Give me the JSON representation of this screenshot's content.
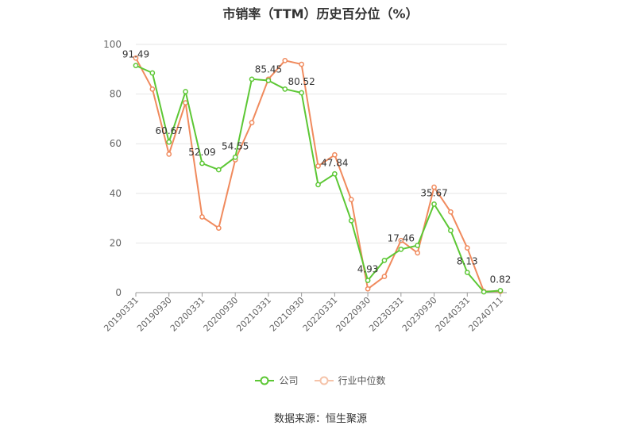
{
  "chart_data": {
    "type": "line",
    "title": "市销率（TTM）历史百分位（%）",
    "x": [
      "20190331",
      "",
      "20190930",
      "",
      "20200331",
      "",
      "20200930",
      "",
      "20210331",
      "",
      "20210930",
      "",
      "20220331",
      "",
      "20220930",
      "",
      "20230331",
      "",
      "20230930",
      "",
      "20240331",
      "",
      "20240711"
    ],
    "series": [
      {
        "name": "公司",
        "color": "#5cc734",
        "values": [
          91.49,
          88.5,
          60.67,
          81.0,
          52.09,
          49.5,
          54.55,
          86.0,
          85.45,
          82.0,
          80.52,
          43.5,
          47.84,
          29.0,
          4.93,
          13.0,
          17.46,
          19.0,
          35.67,
          25.0,
          8.13,
          0.3,
          0.82
        ]
      },
      {
        "name": "行业中位数",
        "color": "#f08a5d",
        "values": [
          94.5,
          82.0,
          55.8,
          76.5,
          30.5,
          26.0,
          53.5,
          68.5,
          86.0,
          93.5,
          92.0,
          51.0,
          55.5,
          37.5,
          1.5,
          6.5,
          21.0,
          16.0,
          42.5,
          32.5,
          18.0,
          0.5,
          0.5
        ]
      }
    ],
    "data_labels": [
      {
        "index": 0,
        "text": "91.49"
      },
      {
        "index": 2,
        "text": "60.67"
      },
      {
        "index": 4,
        "text": "52.09"
      },
      {
        "index": 6,
        "text": "54.55"
      },
      {
        "index": 8,
        "text": "85.45"
      },
      {
        "index": 10,
        "text": "80.52"
      },
      {
        "index": 12,
        "text": "47.84"
      },
      {
        "index": 14,
        "text": "4.93"
      },
      {
        "index": 16,
        "text": "17.46"
      },
      {
        "index": 18,
        "text": "35.67"
      },
      {
        "index": 20,
        "text": "8.13"
      },
      {
        "index": 22,
        "text": "0.82"
      }
    ],
    "ylim": [
      0,
      100
    ],
    "yticks": [
      "0",
      "20",
      "40",
      "60",
      "80",
      "100"
    ],
    "grid": true,
    "legend_position": "bottom-center"
  },
  "source": "数据来源：恒生聚源"
}
